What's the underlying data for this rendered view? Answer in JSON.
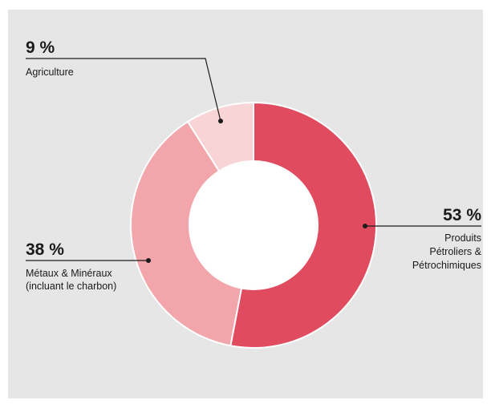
{
  "colors": {
    "background": "#e6e6e6",
    "petroleum": "#e04b5f",
    "metals": "#f2a5aa",
    "agriculture": "#f9d4d6",
    "text": "#1a1a1a"
  },
  "chart_data": {
    "type": "pie",
    "variant": "donut",
    "title": "",
    "slices": [
      {
        "percent_label": "53 %",
        "value": 53,
        "label_lines": [
          "Produits",
          "Pétroliers &",
          "Pétrochimiques"
        ],
        "color": "#e04b5f"
      },
      {
        "percent_label": "38 %",
        "value": 38,
        "label_lines": [
          "Métaux & Minéraux",
          "(incluant le charbon)"
        ],
        "color": "#f2a5aa"
      },
      {
        "percent_label": "9 %",
        "value": 9,
        "label_lines": [
          "Agriculture"
        ],
        "color": "#f9d4d6"
      }
    ],
    "start_angle_deg": 0,
    "direction": "clockwise"
  }
}
